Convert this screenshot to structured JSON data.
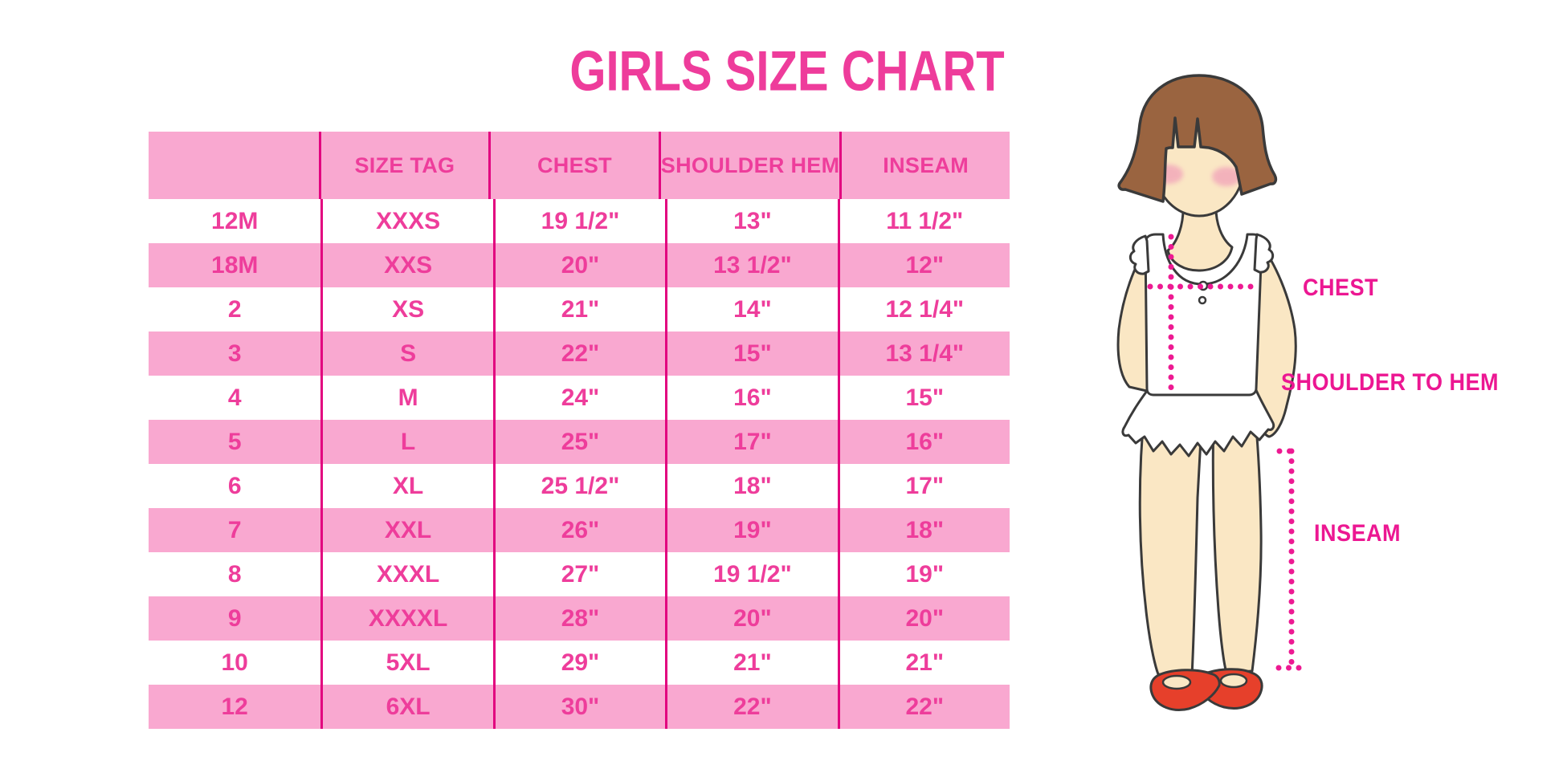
{
  "title": "GIRLS SIZE CHART",
  "chart_data": {
    "type": "table",
    "title": "GIRLS SIZE CHART",
    "columns": [
      "",
      "SIZE TAG",
      "CHEST",
      "SHOULDER HEM",
      "INSEAM"
    ],
    "rows": [
      [
        "12M",
        "XXXS",
        "19 1/2\"",
        "13\"",
        "11 1/2\""
      ],
      [
        "18M",
        "XXS",
        "20\"",
        "13 1/2\"",
        "12\""
      ],
      [
        "2",
        "XS",
        "21\"",
        "14\"",
        "12 1/4\""
      ],
      [
        "3",
        "S",
        "22\"",
        "15\"",
        "13 1/4\""
      ],
      [
        "4",
        "M",
        "24\"",
        "16\"",
        "15\""
      ],
      [
        "5",
        "L",
        "25\"",
        "17\"",
        "16\""
      ],
      [
        "6",
        "XL",
        "25 1/2\"",
        "18\"",
        "17\""
      ],
      [
        "7",
        "XXL",
        "26\"",
        "19\"",
        "18\""
      ],
      [
        "8",
        "XXXL",
        "27\"",
        "19 1/2\"",
        "19\""
      ],
      [
        "9",
        "XXXXL",
        "28\"",
        "20\"",
        "20\""
      ],
      [
        "10",
        "5XL",
        "29\"",
        "21\"",
        "21\""
      ],
      [
        "12",
        "6XL",
        "30\"",
        "22\"",
        "22\""
      ]
    ],
    "row_striping": "header pink, then alternating white/pink starting with white",
    "grid": "vertical magenta dividers only"
  },
  "figure": {
    "chest_label": "CHEST",
    "shoulder_to_hem_label": "SHOULDER TO HEM",
    "inseam_label": "INSEAM"
  },
  "colors": {
    "title_text": "#EE3C9B",
    "table_text": "#EE3D9B",
    "row_pink": "#F9A8D0",
    "divider_magenta": "#E2047F",
    "figure_label_magenta": "#EC1792",
    "dotted_line": "#ED1A92",
    "hair_brown": "#9A6440",
    "skin": "#FAE7C4",
    "blush_pink": "#F2A6BA",
    "shoe_red": "#E6402B",
    "background": "#FFFFFF"
  }
}
